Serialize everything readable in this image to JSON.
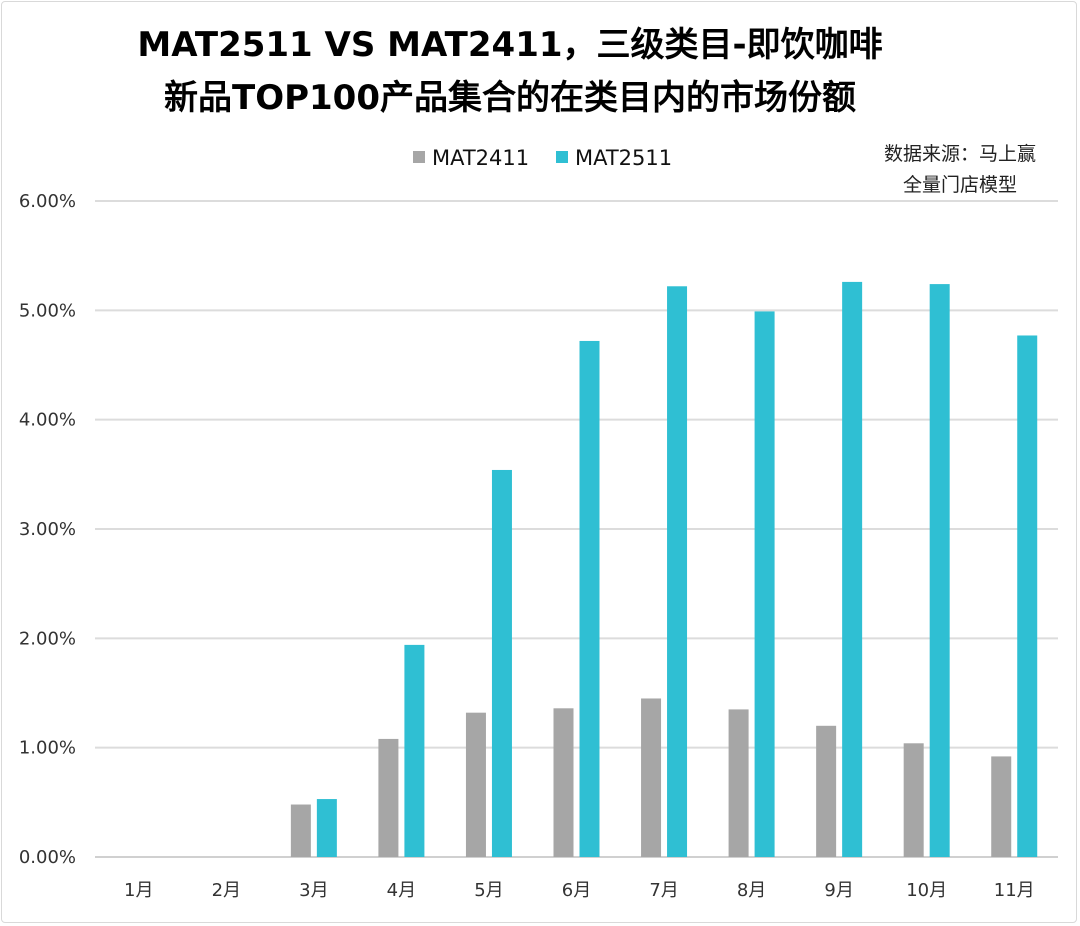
{
  "chart_data": {
    "type": "bar",
    "title_lines": [
      "MAT2511 VS MAT2411，三级类目-即饮咖啡",
      "新品TOP100产品集合的在类目内的市场份额"
    ],
    "source_lines": [
      "数据来源：马上赢",
      "全量门店模型"
    ],
    "categories": [
      "1月",
      "2月",
      "3月",
      "4月",
      "5月",
      "6月",
      "7月",
      "8月",
      "9月",
      "10月",
      "11月"
    ],
    "series": [
      {
        "name": "MAT2411",
        "color": "#a6a6a6",
        "values": [
          0,
          0,
          0.48,
          1.08,
          1.32,
          1.36,
          1.45,
          1.35,
          1.2,
          1.04,
          0.92
        ]
      },
      {
        "name": "MAT2511",
        "color": "#2fbfd3",
        "values": [
          0,
          0,
          0.53,
          1.94,
          3.54,
          4.72,
          5.22,
          4.99,
          5.26,
          5.24,
          4.77
        ]
      }
    ],
    "yticks": [
      "0.00%",
      "1.00%",
      "2.00%",
      "3.00%",
      "4.00%",
      "5.00%",
      "6.00%"
    ],
    "ylim": [
      0,
      6
    ],
    "yunit": "%",
    "grid": true,
    "legend": "top-center"
  }
}
